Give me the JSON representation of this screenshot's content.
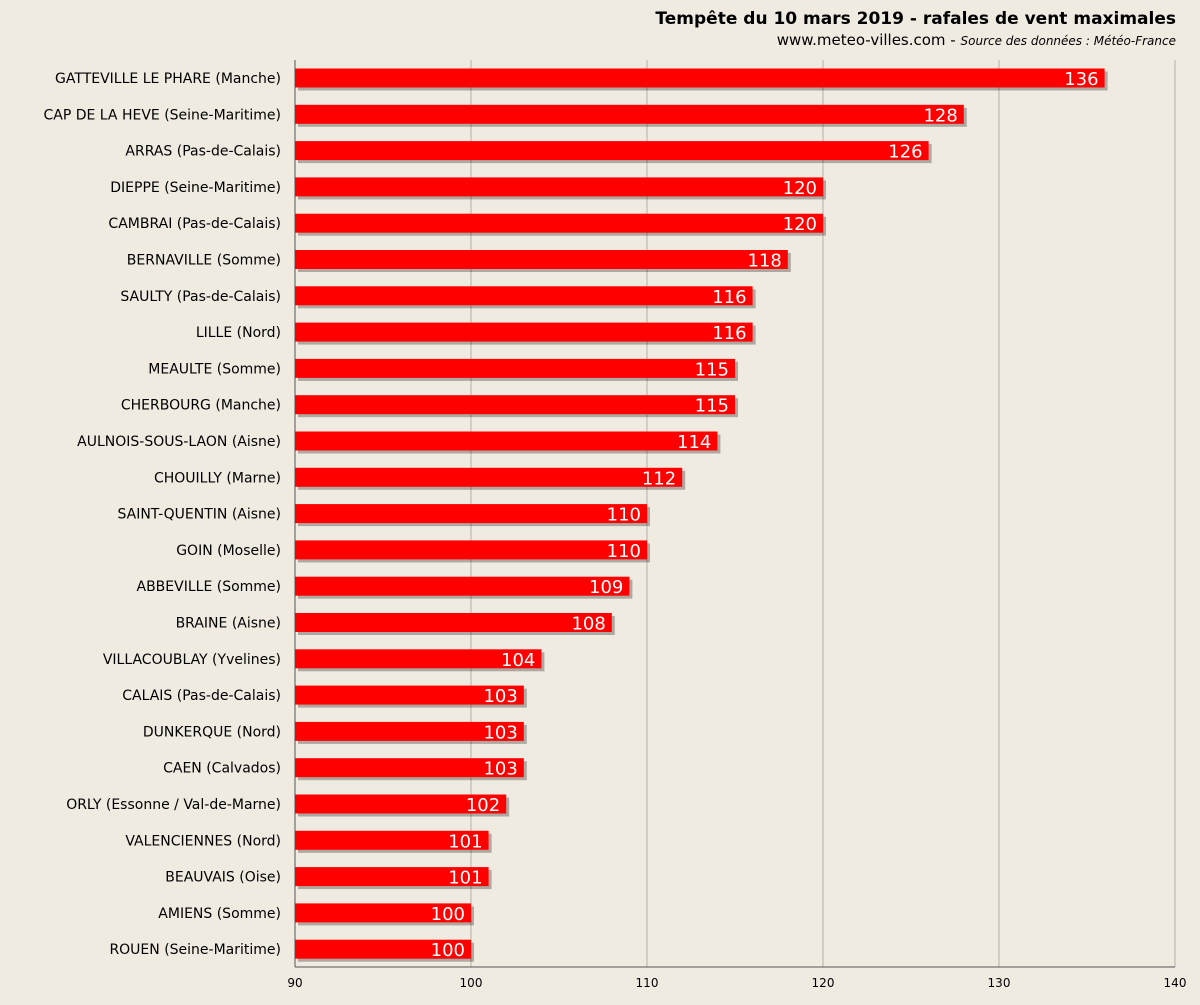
{
  "chart_data": {
    "type": "bar",
    "orientation": "horizontal",
    "title": "Tempête du 10 mars 2019 - rafales de vent maximales",
    "subtitle": "www.meteo-villes.com - ",
    "source": "Source des données : Météo-France",
    "categories": [
      "GATTEVILLE LE PHARE (Manche)",
      "CAP DE LA HEVE (Seine-Maritime)",
      "ARRAS (Pas-de-Calais)",
      "DIEPPE (Seine-Maritime)",
      "CAMBRAI (Pas-de-Calais)",
      "BERNAVILLE (Somme)",
      "SAULTY (Pas-de-Calais)",
      "LILLE (Nord)",
      "MEAULTE (Somme)",
      "CHERBOURG (Manche)",
      "AULNOIS-SOUS-LAON (Aisne)",
      "CHOUILLY (Marne)",
      "SAINT-QUENTIN (Aisne)",
      "GOIN (Moselle)",
      "ABBEVILLE (Somme)",
      "BRAINE (Aisne)",
      "VILLACOUBLAY (Yvelines)",
      "CALAIS (Pas-de-Calais)",
      "DUNKERQUE (Nord)",
      "CAEN (Calvados)",
      "ORLY (Essonne / Val-de-Marne)",
      "VALENCIENNES (Nord)",
      "BEAUVAIS (Oise)",
      "AMIENS (Somme)",
      "ROUEN (Seine-Maritime)"
    ],
    "values": [
      136,
      128,
      126,
      120,
      120,
      118,
      116,
      116,
      115,
      115,
      114,
      112,
      110,
      110,
      109,
      108,
      104,
      103,
      103,
      103,
      102,
      101,
      101,
      100,
      100
    ],
    "xlim": [
      90,
      140
    ],
    "xticks": [
      "90",
      "100",
      "110",
      "120",
      "130",
      "140"
    ],
    "grid": true,
    "bar_color": "#ff0000",
    "label_color": "#ffffff",
    "background_color": "#efebe1"
  }
}
